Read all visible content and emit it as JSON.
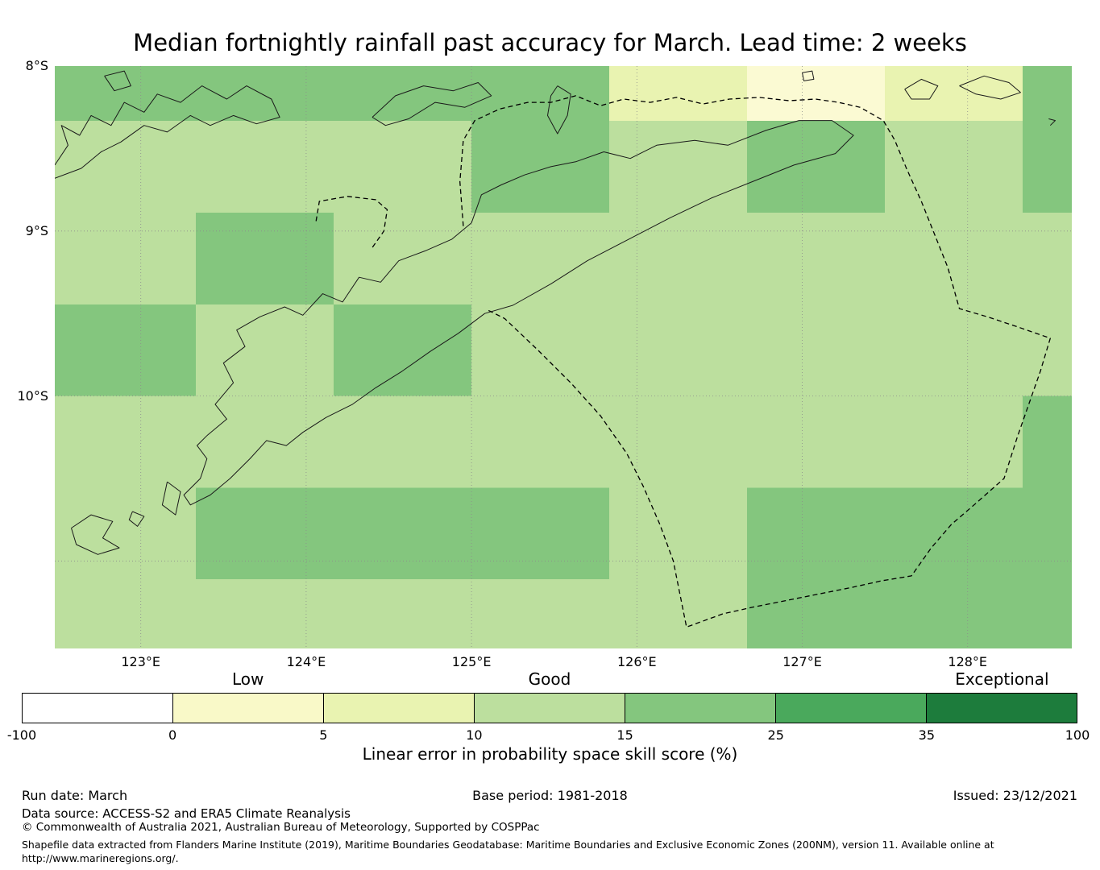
{
  "title": "Median fortnightly rainfall past accuracy for March. Lead time: 2 weeks",
  "map": {
    "bounds": {
      "lon_min": 122.48,
      "lon_max": 128.63,
      "lat_min": 8.0,
      "lat_max": 11.53
    },
    "lat_ticks": [
      {
        "label": "8°S",
        "lat": 8.0
      },
      {
        "label": "9°S",
        "lat": 9.0
      },
      {
        "label": "10°S",
        "lat": 10.0
      }
    ],
    "lon_ticks": [
      {
        "label": "123°E",
        "lon": 123
      },
      {
        "label": "124°E",
        "lon": 124
      },
      {
        "label": "125°E",
        "lon": 125
      },
      {
        "label": "126°E",
        "lon": 126
      },
      {
        "label": "127°E",
        "lon": 127
      },
      {
        "label": "128°E",
        "lon": 128
      }
    ],
    "gridline_lons": [
      123,
      124,
      125,
      126,
      127,
      128
    ],
    "gridline_lats": [
      9,
      10,
      11
    ]
  },
  "chart_data": {
    "type": "heatmap",
    "title": "Median fortnightly rainfall past accuracy for March. Lead time: 2 weeks",
    "units": "Linear error in probability space skill score (%)",
    "lon_edges": [
      122.48,
      123.333,
      124.167,
      125.0,
      125.833,
      126.667,
      127.5,
      128.333,
      128.63
    ],
    "lat_edges": [
      8.0,
      8.333,
      8.889,
      9.444,
      10.0,
      10.556,
      11.111,
      11.53
    ],
    "bins": {
      "0-5": "#fbfad3",
      "5-10": "#e9f3b1",
      "10-15": "#bcdf9e",
      "15-25": "#84c67e"
    },
    "cells": [
      [
        "15-25",
        "15-25",
        "15-25",
        "15-25",
        "5-10",
        "0-5",
        "5-10",
        "15-25"
      ],
      [
        "10-15",
        "10-15",
        "10-15",
        "15-25",
        "10-15",
        "15-25",
        "10-15",
        "15-25"
      ],
      [
        "10-15",
        "15-25",
        "10-15",
        "10-15",
        "10-15",
        "10-15",
        "10-15",
        "10-15"
      ],
      [
        "15-25",
        "10-15",
        "15-25",
        "10-15",
        "10-15",
        "10-15",
        "10-15",
        "10-15"
      ],
      [
        "10-15",
        "10-15",
        "10-15",
        "10-15",
        "10-15",
        "10-15",
        "10-15",
        "15-25"
      ],
      [
        "10-15",
        "15-25",
        "15-25",
        "15-25",
        "10-15",
        "15-25",
        "15-25",
        "15-25"
      ],
      [
        "10-15",
        "10-15",
        "10-15",
        "10-15",
        "10-15",
        "15-25",
        "15-25",
        "15-25"
      ]
    ],
    "colorbar": {
      "label": "Linear error in probability space skill score (%)",
      "ticks": [
        -100,
        0,
        5,
        10,
        15,
        25,
        35,
        100
      ],
      "colors": [
        "#ffffff",
        "#f9f9c8",
        "#e9f3b1",
        "#bcdf9e",
        "#84c67e",
        "#4aa95c",
        "#1d7c3c"
      ],
      "categories": [
        {
          "label": "Low",
          "pos": 1.5
        },
        {
          "label": "Good",
          "pos": 3.5
        },
        {
          "label": "Exceptional",
          "pos": 6.5
        }
      ]
    },
    "coastlines": [
      [
        [
          123.4,
          10.24
        ],
        [
          123.52,
          10.14
        ],
        [
          123.45,
          10.05
        ],
        [
          123.56,
          9.92
        ],
        [
          123.5,
          9.8
        ],
        [
          123.63,
          9.7
        ],
        [
          123.58,
          9.6
        ],
        [
          123.72,
          9.52
        ],
        [
          123.87,
          9.46
        ],
        [
          123.98,
          9.51
        ],
        [
          124.1,
          9.38
        ],
        [
          124.22,
          9.43
        ],
        [
          124.32,
          9.28
        ],
        [
          124.45,
          9.31
        ],
        [
          124.56,
          9.18
        ],
        [
          124.72,
          9.12
        ],
        [
          124.88,
          9.05
        ],
        [
          125.0,
          8.95
        ],
        [
          125.06,
          8.78
        ],
        [
          125.18,
          8.72
        ],
        [
          125.32,
          8.66
        ],
        [
          125.48,
          8.61
        ],
        [
          125.63,
          8.58
        ],
        [
          125.8,
          8.52
        ],
        [
          125.96,
          8.56
        ],
        [
          126.12,
          8.48
        ],
        [
          126.35,
          8.45
        ],
        [
          126.55,
          8.48
        ],
        [
          126.78,
          8.39
        ],
        [
          126.98,
          8.33
        ],
        [
          127.18,
          8.33
        ],
        [
          127.31,
          8.42
        ],
        [
          127.2,
          8.53
        ],
        [
          126.95,
          8.6
        ],
        [
          126.7,
          8.7
        ],
        [
          126.45,
          8.8
        ],
        [
          126.2,
          8.92
        ],
        [
          125.95,
          9.05
        ],
        [
          125.7,
          9.18
        ],
        [
          125.48,
          9.32
        ],
        [
          125.25,
          9.45
        ],
        [
          125.08,
          9.5
        ],
        [
          124.92,
          9.62
        ],
        [
          124.75,
          9.73
        ],
        [
          124.58,
          9.85
        ],
        [
          124.42,
          9.95
        ],
        [
          124.28,
          10.05
        ],
        [
          124.12,
          10.13
        ],
        [
          123.98,
          10.22
        ],
        [
          123.88,
          10.3
        ],
        [
          123.76,
          10.27
        ],
        [
          123.66,
          10.38
        ],
        [
          123.54,
          10.5
        ],
        [
          123.42,
          10.6
        ],
        [
          123.3,
          10.66
        ],
        [
          123.26,
          10.6
        ],
        [
          123.36,
          10.5
        ],
        [
          123.4,
          10.38
        ],
        [
          123.34,
          10.3
        ],
        [
          123.4,
          10.24
        ]
      ],
      [
        [
          122.48,
          8.6
        ],
        [
          122.56,
          8.48
        ],
        [
          122.52,
          8.36
        ],
        [
          122.63,
          8.42
        ],
        [
          122.7,
          8.3
        ],
        [
          122.82,
          8.36
        ],
        [
          122.9,
          8.22
        ],
        [
          123.02,
          8.28
        ],
        [
          123.1,
          8.17
        ],
        [
          123.24,
          8.22
        ],
        [
          123.37,
          8.12
        ],
        [
          123.52,
          8.2
        ],
        [
          123.64,
          8.12
        ],
        [
          123.79,
          8.2
        ],
        [
          123.84,
          8.31
        ],
        [
          123.7,
          8.35
        ],
        [
          123.56,
          8.3
        ],
        [
          123.42,
          8.36
        ],
        [
          123.3,
          8.3
        ],
        [
          123.16,
          8.4
        ],
        [
          123.02,
          8.36
        ],
        [
          122.88,
          8.46
        ],
        [
          122.76,
          8.52
        ],
        [
          122.64,
          8.62
        ],
        [
          122.48,
          8.68
        ]
      ],
      [
        [
          122.78,
          8.06
        ],
        [
          122.9,
          8.03
        ],
        [
          122.94,
          8.12
        ],
        [
          122.84,
          8.15
        ],
        [
          122.78,
          8.06
        ]
      ],
      [
        [
          124.4,
          8.31
        ],
        [
          124.54,
          8.18
        ],
        [
          124.71,
          8.12
        ],
        [
          124.89,
          8.15
        ],
        [
          125.04,
          8.1
        ],
        [
          125.12,
          8.18
        ],
        [
          124.96,
          8.25
        ],
        [
          124.78,
          8.22
        ],
        [
          124.62,
          8.32
        ],
        [
          124.48,
          8.36
        ],
        [
          124.4,
          8.31
        ]
      ],
      [
        [
          125.52,
          8.12
        ],
        [
          125.6,
          8.17
        ],
        [
          125.58,
          8.3
        ],
        [
          125.52,
          8.41
        ],
        [
          125.46,
          8.3
        ],
        [
          125.48,
          8.18
        ],
        [
          125.52,
          8.12
        ]
      ],
      [
        [
          127.0,
          8.04
        ],
        [
          127.06,
          8.03
        ],
        [
          127.07,
          8.08
        ],
        [
          127.01,
          8.09
        ],
        [
          127.0,
          8.04
        ]
      ],
      [
        [
          127.62,
          8.14
        ],
        [
          127.72,
          8.08
        ],
        [
          127.82,
          8.12
        ],
        [
          127.77,
          8.2
        ],
        [
          127.66,
          8.2
        ],
        [
          127.62,
          8.14
        ]
      ],
      [
        [
          127.95,
          8.12
        ],
        [
          128.1,
          8.06
        ],
        [
          128.25,
          8.1
        ],
        [
          128.32,
          8.16
        ],
        [
          128.2,
          8.2
        ],
        [
          128.05,
          8.17
        ],
        [
          127.95,
          8.12
        ]
      ],
      [
        [
          128.49,
          8.32
        ],
        [
          128.53,
          8.33
        ],
        [
          128.5,
          8.36
        ]
      ],
      [
        [
          122.58,
          10.8
        ],
        [
          122.7,
          10.72
        ],
        [
          122.83,
          10.76
        ],
        [
          122.77,
          10.86
        ],
        [
          122.87,
          10.92
        ],
        [
          122.74,
          10.96
        ],
        [
          122.61,
          10.9
        ],
        [
          122.58,
          10.8
        ]
      ],
      [
        [
          123.16,
          10.52
        ],
        [
          123.24,
          10.58
        ],
        [
          123.21,
          10.72
        ],
        [
          123.13,
          10.66
        ],
        [
          123.16,
          10.52
        ]
      ],
      [
        [
          122.95,
          10.7
        ],
        [
          123.02,
          10.73
        ],
        [
          122.98,
          10.79
        ],
        [
          122.93,
          10.75
        ],
        [
          122.95,
          10.7
        ]
      ]
    ],
    "eez_boundary": [
      [
        [
          124.95,
          8.97
        ],
        [
          124.93,
          8.7
        ],
        [
          124.95,
          8.45
        ],
        [
          125.02,
          8.33
        ],
        [
          125.17,
          8.26
        ],
        [
          125.34,
          8.22
        ],
        [
          125.48,
          8.22
        ],
        [
          125.63,
          8.18
        ],
        [
          125.78,
          8.24
        ],
        [
          125.92,
          8.2
        ],
        [
          126.08,
          8.22
        ],
        [
          126.24,
          8.19
        ],
        [
          126.4,
          8.23
        ],
        [
          126.56,
          8.2
        ],
        [
          126.74,
          8.19
        ],
        [
          126.92,
          8.21
        ],
        [
          127.08,
          8.2
        ],
        [
          127.22,
          8.22
        ],
        [
          127.35,
          8.25
        ],
        [
          127.49,
          8.33
        ],
        [
          127.56,
          8.45
        ],
        [
          127.63,
          8.62
        ],
        [
          127.72,
          8.82
        ],
        [
          127.8,
          9.02
        ],
        [
          127.88,
          9.22
        ],
        [
          127.95,
          9.47
        ],
        [
          128.12,
          9.52
        ],
        [
          128.3,
          9.58
        ],
        [
          128.5,
          9.65
        ],
        [
          128.44,
          9.85
        ],
        [
          128.37,
          10.05
        ],
        [
          128.3,
          10.25
        ],
        [
          128.22,
          10.5
        ],
        [
          128.05,
          10.65
        ],
        [
          127.9,
          10.78
        ],
        [
          127.78,
          10.92
        ],
        [
          127.66,
          11.09
        ],
        [
          127.48,
          11.12
        ],
        [
          127.3,
          11.16
        ],
        [
          127.1,
          11.2
        ],
        [
          126.9,
          11.24
        ],
        [
          126.7,
          11.28
        ],
        [
          126.52,
          11.32
        ],
        [
          126.3,
          11.4
        ],
        [
          126.26,
          11.2
        ],
        [
          126.22,
          11.0
        ],
        [
          126.14,
          10.78
        ],
        [
          126.04,
          10.55
        ],
        [
          125.94,
          10.35
        ],
        [
          125.78,
          10.12
        ],
        [
          125.6,
          9.92
        ],
        [
          125.4,
          9.72
        ],
        [
          125.2,
          9.53
        ],
        [
          125.1,
          9.48
        ]
      ],
      [
        [
          124.06,
          8.94
        ],
        [
          124.08,
          8.82
        ],
        [
          124.25,
          8.79
        ],
        [
          124.42,
          8.81
        ],
        [
          124.49,
          8.87
        ],
        [
          124.47,
          9.0
        ],
        [
          124.4,
          9.1
        ]
      ]
    ]
  },
  "footer": {
    "run_date": "Run date: March",
    "base_period": "Base period: 1981-2018",
    "issued": "Issued: 23/12/2021",
    "data_source": "Data source: ACCESS-S2 and ERA5 Climate Reanalysis",
    "copyright": "© Commonwealth of Australia 2021, Australian Bureau of Meteorology, Supported by COSPPac",
    "shapefile_note_line1": "Shapefile data extracted from Flanders Marine Institute (2019), Maritime Boundaries Geodatabase: Maritime Boundaries and Exclusive Economic Zones (200NM), version 11. Available online at",
    "shapefile_note_line2": "http://www.marineregions.org/."
  }
}
